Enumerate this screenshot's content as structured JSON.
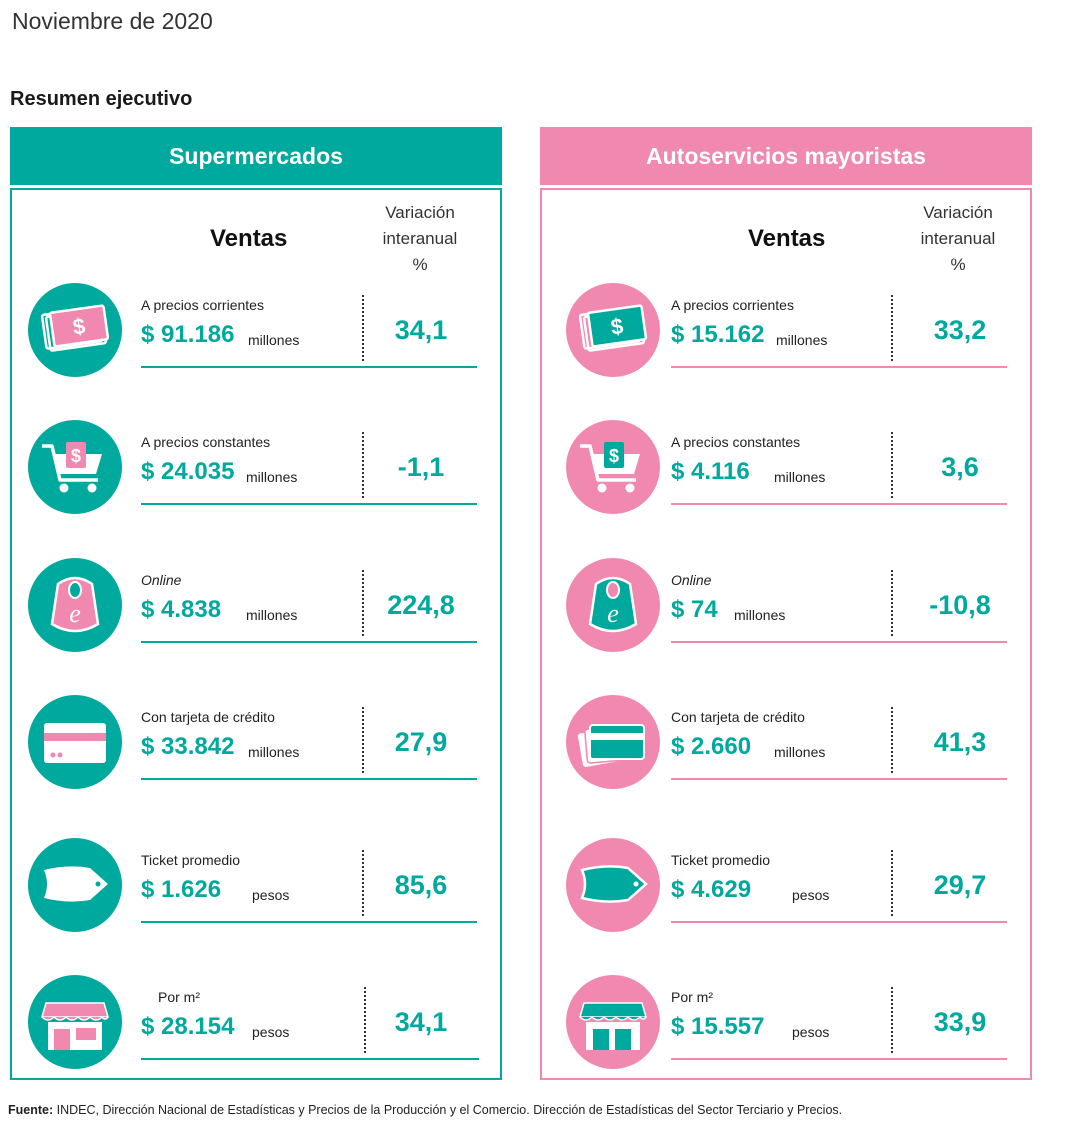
{
  "date": "Noviembre de 2020",
  "subtitle": "Resumen ejecutivo",
  "column_headers": {
    "ventas": "Ventas",
    "variacion": [
      "Variación",
      "interanual",
      "%"
    ]
  },
  "colors": {
    "teal": "#00a99d",
    "pink": "#f088b0"
  },
  "panels": [
    {
      "title": "Supermercados",
      "rows": [
        {
          "icon": "money-icon",
          "label": "A precios corrientes",
          "value": "$ 91.186",
          "unit": "millones",
          "pct": "34,1"
        },
        {
          "icon": "cart-icon",
          "label": "A precios constantes",
          "value": "$ 24.035",
          "unit": "millones",
          "pct": "-1,1"
        },
        {
          "icon": "online-bag-icon",
          "label": "Online",
          "value": "$ 4.838",
          "unit": "millones",
          "pct": "224,8"
        },
        {
          "icon": "credit-card-icon",
          "label": "Con tarjeta de crédito",
          "value": "$ 33.842",
          "unit": "millones",
          "pct": "27,9"
        },
        {
          "icon": "ticket-icon",
          "label": "Ticket promedio",
          "value": "$ 1.626",
          "unit": "pesos",
          "pct": "85,6"
        },
        {
          "icon": "store-icon",
          "label": "Por m²",
          "value": "$ 28.154",
          "unit": "pesos",
          "pct": "34,1"
        }
      ]
    },
    {
      "title": "Autoservicios mayoristas",
      "rows": [
        {
          "icon": "money-icon",
          "label": "A precios corrientes",
          "value": "$ 15.162",
          "unit": "millones",
          "pct": "33,2"
        },
        {
          "icon": "cart-icon",
          "label": "A precios constantes",
          "value": "$ 4.116",
          "unit": "millones",
          "pct": "3,6"
        },
        {
          "icon": "online-bag-icon",
          "label": "Online",
          "value": "$ 74",
          "unit": "millones",
          "pct": "-10,8"
        },
        {
          "icon": "credit-card-icon",
          "label": "Con tarjeta de crédito",
          "value": "$ 2.660",
          "unit": "millones",
          "pct": "41,3"
        },
        {
          "icon": "ticket-icon",
          "label": "Ticket promedio",
          "value": "$ 4.629",
          "unit": "pesos",
          "pct": "29,7"
        },
        {
          "icon": "store-icon",
          "label": "Por m²",
          "value": "$ 15.557",
          "unit": "pesos",
          "pct": "33,9"
        }
      ]
    }
  ],
  "footer": {
    "label": "Fuente:",
    "text": " INDEC, Dirección Nacional de Estadísticas y Precios de la Producción y el Comercio. Dirección de Estadísticas del Sector Terciario y Precios."
  }
}
